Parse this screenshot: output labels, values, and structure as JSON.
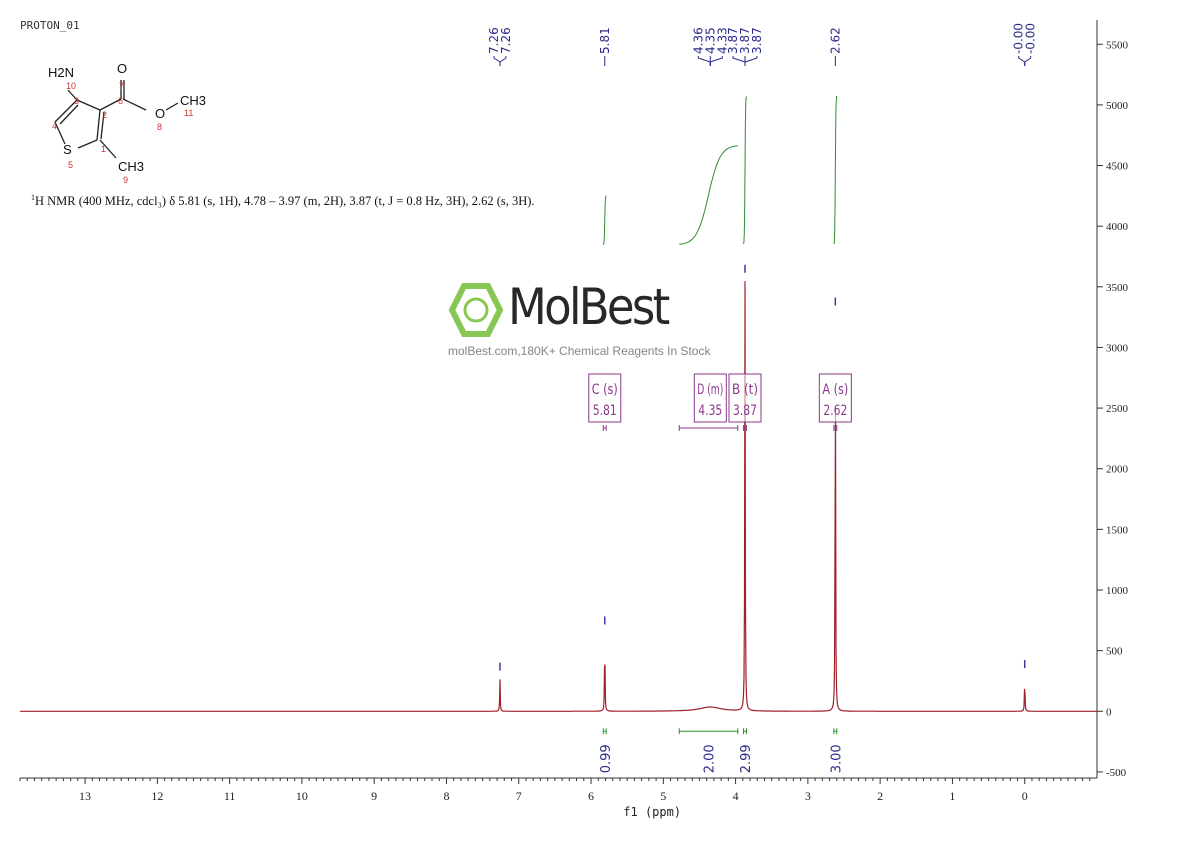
{
  "experiment_title": "PROTON_01",
  "nmr_description": {
    "prefix_superscript": "1",
    "text": "H NMR (400 MHz, cdcl₃) δ 5.81 (s, 1H), 4.78 – 3.97 (m, 2H), 3.87 (t, J = 0.8 Hz, 3H), 2.62 (s, 3H)."
  },
  "structure": {
    "atoms": [
      "H2N",
      "O",
      "CH3",
      "O",
      "S",
      "CH3"
    ],
    "numbers": [
      "1",
      "2",
      "3",
      "4",
      "5",
      "6",
      "7",
      "8",
      "9",
      "10",
      "11"
    ]
  },
  "watermark": {
    "brand": "MolBest",
    "tagline": "molBest.com,180K+ Chemical Reagents In Stock"
  },
  "chart_data": {
    "type": "line",
    "xlabel": "f1 (ppm)",
    "xlim": [
      13.9,
      -1.0
    ],
    "ylim": [
      -550,
      5700
    ],
    "x_ticks": [
      13,
      12,
      11,
      10,
      9,
      8,
      7,
      6,
      5,
      4,
      3,
      2,
      1,
      0
    ],
    "y_ticks": [
      -500,
      0,
      500,
      1000,
      1500,
      2000,
      2500,
      3000,
      3500,
      4000,
      4500,
      5000,
      5500
    ],
    "colors": {
      "spectrum": "#a0202a",
      "integral": "#2e8b2e",
      "peak_label": "#2a2a8a",
      "multiplet": "#8b3a8b",
      "axis": "#333333"
    },
    "peaks": [
      {
        "ppm": 7.26,
        "height": 270
      },
      {
        "ppm": 5.81,
        "height": 650
      },
      {
        "ppm": 4.35,
        "height": 35,
        "broad": true
      },
      {
        "ppm": 3.87,
        "height": 3550
      },
      {
        "ppm": 2.62,
        "height": 3280
      },
      {
        "ppm": 0.0,
        "height": 290
      }
    ],
    "peak_label_groups": [
      {
        "labels": [
          "7.26",
          "7.26"
        ],
        "ppm": 7.26
      },
      {
        "labels": [
          "5.81"
        ],
        "ppm": 5.81
      },
      {
        "labels": [
          "4.36",
          "4.35",
          "4.33"
        ],
        "ppm": 4.35
      },
      {
        "labels": [
          "3.87",
          "3.87",
          "3.87"
        ],
        "ppm": 3.87
      },
      {
        "labels": [
          "2.62"
        ],
        "ppm": 2.62
      },
      {
        "labels": [
          "-0.00",
          "-0.00"
        ],
        "ppm": 0.0
      }
    ],
    "multiplets": [
      {
        "letter": "C",
        "type": "s",
        "shift": "5.81",
        "ppm": 5.81,
        "range": [
          5.83,
          5.79
        ]
      },
      {
        "letter": "D",
        "type": "m",
        "shift": "4.35",
        "ppm": 4.35,
        "range": [
          4.78,
          3.97
        ]
      },
      {
        "letter": "B",
        "type": "t",
        "shift": "3.87",
        "ppm": 3.87,
        "range": [
          3.89,
          3.85
        ]
      },
      {
        "letter": "A",
        "type": "s",
        "shift": "2.62",
        "ppm": 2.62,
        "range": [
          2.64,
          2.6
        ]
      }
    ],
    "integrals": [
      {
        "value": "0.99",
        "from": 5.83,
        "to": 5.79
      },
      {
        "value": "2.00",
        "from": 4.78,
        "to": 3.97
      },
      {
        "value": "2.99",
        "from": 3.89,
        "to": 3.85
      },
      {
        "value": "3.00",
        "from": 2.64,
        "to": 2.6
      }
    ]
  }
}
